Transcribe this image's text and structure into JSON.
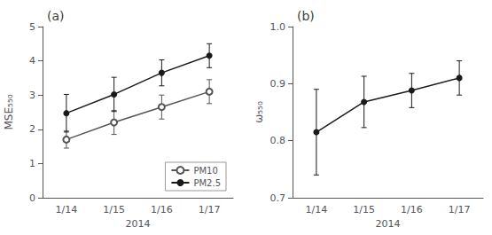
{
  "chart_data": [
    {
      "type": "line",
      "title": "(a)",
      "xlabel": "2014",
      "ylabel": "MSE₅₅₀",
      "categories": [
        "1/14",
        "1/15",
        "1/16",
        "1/17"
      ],
      "ylim": [
        0,
        5
      ],
      "yticks": [
        0,
        1,
        2,
        3,
        4,
        5
      ],
      "grid": false,
      "legend": "lower right",
      "series": [
        {
          "name": "PM10",
          "color": "#555555",
          "marker": "emptyCircle",
          "values": [
            1.7,
            2.2,
            2.65,
            3.1
          ],
          "yerr": [
            0.25,
            0.35,
            0.35,
            0.35
          ]
        },
        {
          "name": "PM2.5",
          "color": "#1a1a1a",
          "marker": "circle",
          "values": [
            2.47,
            3.02,
            3.65,
            4.15
          ],
          "yerr": [
            0.55,
            0.5,
            0.38,
            0.35
          ]
        }
      ]
    },
    {
      "type": "line",
      "title": "(b)",
      "xlabel": "2014",
      "ylabel": "ω₅₅₀",
      "categories": [
        "1/14",
        "1/15",
        "1/16",
        "1/17"
      ],
      "ylim": [
        0.7,
        1.0
      ],
      "yticks": [
        {
          "value": 0.7,
          "label": "0.7"
        },
        {
          "value": 0.8,
          "label": "0.8"
        },
        {
          "value": 0.9,
          "label": "0.9"
        },
        {
          "value": 1.0,
          "label": "1.0"
        }
      ],
      "grid": false,
      "series": [
        {
          "color": "#1a1a1a",
          "marker": "circle",
          "values": [
            0.815,
            0.868,
            0.888,
            0.91
          ],
          "yerr": [
            0.075,
            0.045,
            0.03,
            0.03
          ]
        }
      ]
    }
  ]
}
